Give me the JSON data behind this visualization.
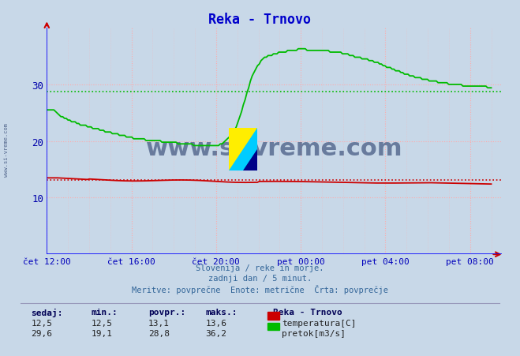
{
  "title": "Reka - Trnovo",
  "bg_color": "#c8d8e8",
  "plot_bg_color": "#c8d8e8",
  "grid_color": "#ffaaaa",
  "x_label_color": "#0000bb",
  "y_label_color": "#0000aa",
  "title_color": "#0000cc",
  "subtitle_lines": [
    "Slovenija / reke in morje.",
    "zadnji dan / 5 minut.",
    "Meritve: povprečne  Enote: metrične  Črta: povprečje"
  ],
  "legend_title": "Reka - Trnovo",
  "legend_items": [
    {
      "label": "temperatura[C]",
      "color": "#cc0000"
    },
    {
      "label": "pretok[m3/s]",
      "color": "#00bb00"
    }
  ],
  "table_header": [
    "sedaj:",
    "min.:",
    "povpr.:",
    "maks.:"
  ],
  "table_rows": [
    [
      "12,5",
      "12,5",
      "13,1",
      "13,6"
    ],
    [
      "29,6",
      "19,1",
      "28,8",
      "36,2"
    ]
  ],
  "temp_avg": 13.1,
  "flow_avg": 28.8,
  "temp_color": "#cc0000",
  "flow_color": "#00bb00",
  "ylim_min": 0,
  "ylim_max": 40,
  "ytick_vals": [
    10,
    20,
    30
  ],
  "xlim_min": 0,
  "xlim_max": 21.5,
  "xtick_positions": [
    0,
    4,
    8,
    12,
    16,
    20
  ],
  "xtick_labels": [
    "čet 12:00",
    "čet 16:00",
    "čet 20:00",
    "pet 00:00",
    "pet 04:00",
    "pet 08:00"
  ],
  "watermark": "www.si-vreme.com",
  "watermark_color": "#1a3060",
  "left_text": "www.si-vreme.com"
}
